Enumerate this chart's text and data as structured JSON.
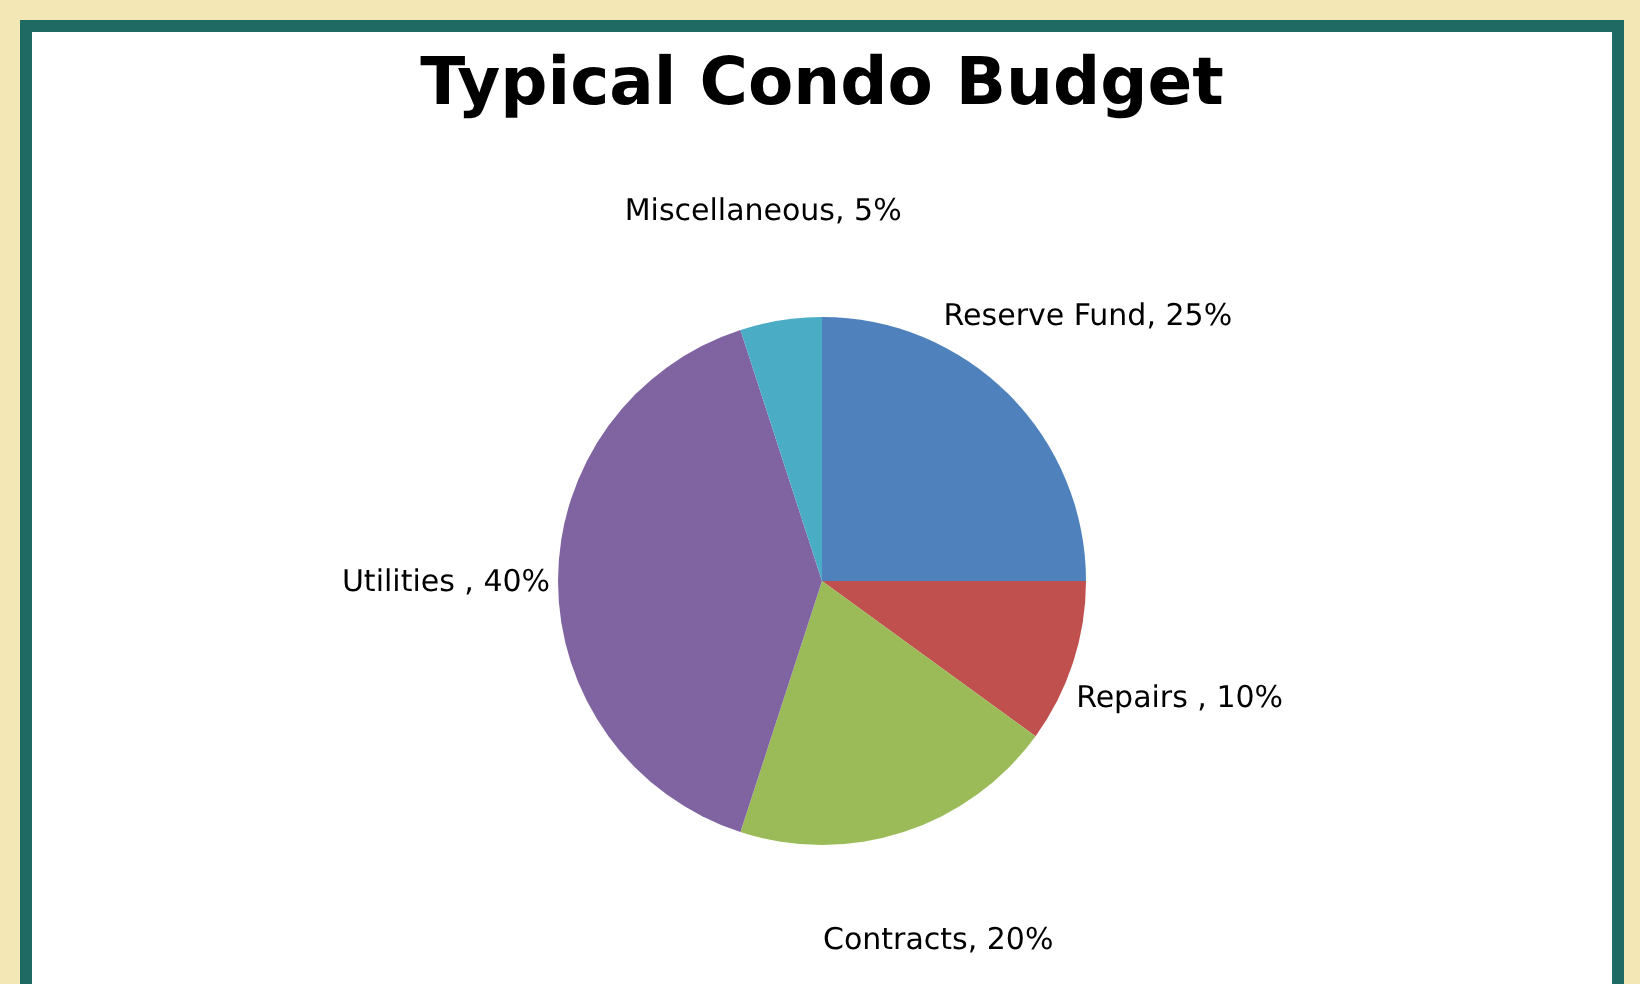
{
  "chart_data": {
    "type": "pie",
    "title": "Typical Condo Budget",
    "categories": [
      "Reserve Fund",
      "Repairs ",
      "Contracts",
      "Utilities ",
      "Miscellaneous"
    ],
    "values": [
      25,
      10,
      20,
      40,
      5
    ],
    "colors": [
      "#4f81bd",
      "#c0504d",
      "#9bbb59",
      "#8064a2",
      "#4bacc6"
    ],
    "value_labels": [
      "25%",
      "10%",
      "20%",
      "40%",
      "5%"
    ],
    "legend": false
  }
}
